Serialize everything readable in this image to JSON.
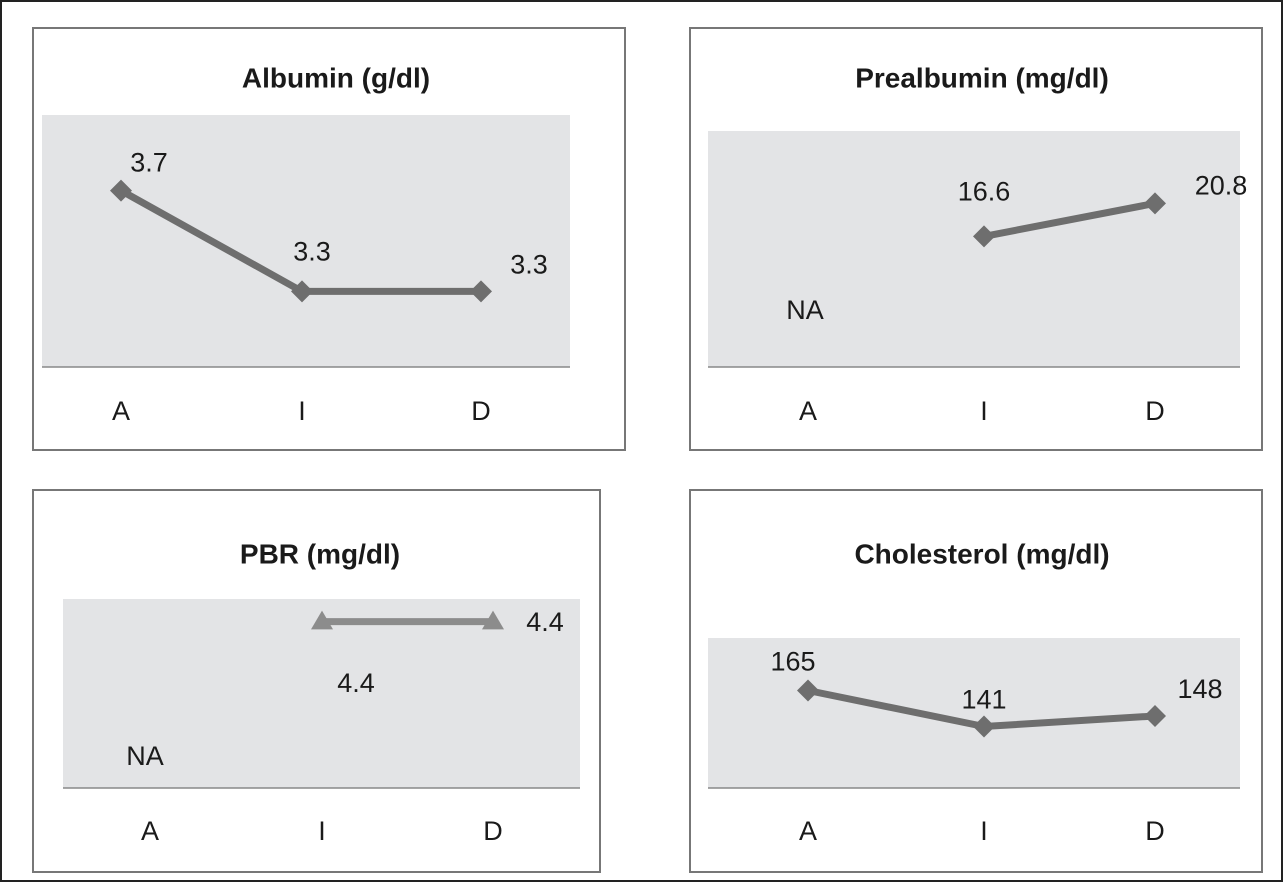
{
  "chart_data": [
    {
      "type": "line",
      "title": "Albumin (g/dl)",
      "categories": [
        "A",
        "I",
        "D"
      ],
      "values": [
        3.7,
        3.3,
        3.3
      ],
      "ylim": [
        3,
        4
      ],
      "color": "#6e6e6e",
      "marker": "diamond"
    },
    {
      "type": "line",
      "title": "Prealbumin (mg/dl)",
      "categories": [
        "A",
        "I",
        "D"
      ],
      "values": [
        null,
        16.6,
        20.8
      ],
      "value_labels": [
        "NA",
        "16.6",
        "20.8"
      ],
      "ylim": [
        0,
        30
      ],
      "color": "#6e6e6e",
      "marker": "diamond"
    },
    {
      "type": "line",
      "title": "PBR (mg/dl)",
      "categories": [
        "A",
        "I",
        "D"
      ],
      "values": [
        null,
        4.4,
        4.4
      ],
      "value_labels": [
        "NA",
        "4.4",
        "4.4"
      ],
      "ylim": [
        0,
        5
      ],
      "color": "#8c8c8c",
      "marker": "triangle"
    },
    {
      "type": "line",
      "title": "Cholesterol (mg/dl)",
      "categories": [
        "A",
        "I",
        "D"
      ],
      "values": [
        165,
        141,
        148
      ],
      "ylim": [
        100,
        200
      ],
      "color": "#6e6e6e",
      "marker": "diamond"
    }
  ]
}
